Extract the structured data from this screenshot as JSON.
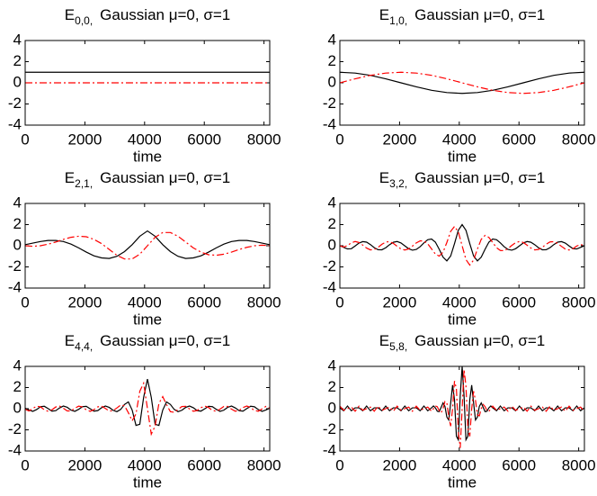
{
  "chart_data": [
    {
      "type": "line",
      "title_symbol": "E",
      "title_subscript": "0,0,",
      "title": "Gaussian μ=0, σ=1",
      "xlabel": "time",
      "xlim": [
        0,
        8192
      ],
      "ylim": [
        -4,
        4
      ],
      "xticks": [
        0,
        2000,
        4000,
        6000,
        8000
      ],
      "yticks": [
        -4,
        -2,
        0,
        2,
        4
      ],
      "x": [
        0,
        8192
      ],
      "series": [
        {
          "color": "#000000",
          "style": "solid",
          "values": [
            1,
            1
          ]
        },
        {
          "color": "#ff0000",
          "style": "dash-dot",
          "values": [
            0,
            0
          ]
        }
      ]
    },
    {
      "type": "line",
      "title_symbol": "E",
      "title_subscript": "1,0,",
      "title": "Gaussian μ=0, σ=1",
      "xlabel": "time",
      "xlim": [
        0,
        8192
      ],
      "ylim": [
        -4,
        4
      ],
      "xticks": [
        0,
        2000,
        4000,
        6000,
        8000
      ],
      "yticks": [
        -4,
        -2,
        0,
        2,
        4
      ],
      "x": [
        0,
        512,
        1024,
        1536,
        2048,
        2560,
        3072,
        3584,
        4096,
        4608,
        5120,
        5632,
        6144,
        6656,
        7168,
        7680,
        8192
      ],
      "series": [
        {
          "color": "#000000",
          "style": "solid",
          "values": [
            1,
            0.92,
            0.71,
            0.38,
            0,
            -0.38,
            -0.71,
            -0.92,
            -1,
            -0.92,
            -0.71,
            -0.38,
            0,
            0.38,
            0.71,
            0.92,
            1
          ]
        },
        {
          "color": "#ff0000",
          "style": "dash-dot",
          "values": [
            0,
            0.38,
            0.71,
            0.92,
            1,
            0.92,
            0.71,
            0.38,
            0,
            -0.38,
            -0.71,
            -0.92,
            -1,
            -0.92,
            -0.71,
            -0.38,
            0
          ]
        }
      ]
    },
    {
      "type": "line",
      "title_symbol": "E",
      "title_subscript": "2,1,",
      "title": "Gaussian μ=0, σ=1",
      "xlabel": "time",
      "xlim": [
        0,
        8192
      ],
      "ylim": [
        -4,
        4
      ],
      "xticks": [
        0,
        2000,
        4000,
        6000,
        8000
      ],
      "yticks": [
        -4,
        -2,
        0,
        2,
        4
      ],
      "x": [
        0,
        256,
        512,
        768,
        1024,
        1280,
        1536,
        1792,
        2048,
        2304,
        2560,
        2816,
        3072,
        3328,
        3584,
        3840,
        4096,
        4352,
        4608,
        4864,
        5120,
        5376,
        5632,
        5888,
        6144,
        6400,
        6656,
        6912,
        7168,
        7424,
        7680,
        7936,
        8192
      ],
      "series": [
        {
          "color": "#000000",
          "style": "solid",
          "values": [
            0.1,
            0.25,
            0.4,
            0.5,
            0.5,
            0.4,
            0.15,
            -0.2,
            -0.6,
            -0.95,
            -1.15,
            -1.2,
            -1.0,
            -0.55,
            0.1,
            0.9,
            1.4,
            0.9,
            0.1,
            -0.55,
            -1.0,
            -1.2,
            -1.15,
            -0.95,
            -0.6,
            -0.2,
            0.15,
            0.4,
            0.5,
            0.5,
            0.4,
            0.25,
            0.1
          ]
        },
        {
          "color": "#ff0000",
          "style": "dash-dot",
          "values": [
            0,
            -0.05,
            0,
            0.15,
            0.35,
            0.6,
            0.8,
            0.9,
            0.85,
            0.6,
            0.2,
            -0.35,
            -0.9,
            -1.25,
            -1.25,
            -0.8,
            0,
            0.8,
            1.25,
            1.25,
            0.9,
            0.35,
            -0.2,
            -0.6,
            -0.85,
            -0.9,
            -0.8,
            -0.6,
            -0.35,
            -0.15,
            0,
            0.05,
            0
          ]
        }
      ]
    },
    {
      "type": "line",
      "title_symbol": "E",
      "title_subscript": "3,2,",
      "title": "Gaussian μ=0, σ=1",
      "xlabel": "time",
      "xlim": [
        0,
        8192
      ],
      "ylim": [
        -4,
        4
      ],
      "xticks": [
        0,
        2000,
        4000,
        6000,
        8000
      ],
      "yticks": [
        -4,
        -2,
        0,
        2,
        4
      ],
      "x": [
        0,
        128,
        256,
        384,
        512,
        640,
        768,
        896,
        1024,
        1152,
        1280,
        1408,
        1536,
        1664,
        1792,
        1920,
        2048,
        2176,
        2304,
        2432,
        2560,
        2688,
        2816,
        2944,
        3072,
        3200,
        3328,
        3456,
        3584,
        3712,
        3840,
        3968,
        4096,
        4224,
        4352,
        4480,
        4608,
        4736,
        4864,
        4992,
        5120,
        5248,
        5376,
        5504,
        5632,
        5760,
        5888,
        6016,
        6144,
        6272,
        6400,
        6528,
        6656,
        6784,
        6912,
        7040,
        7168,
        7296,
        7424,
        7552,
        7680,
        7808,
        7936,
        8064,
        8192
      ],
      "series": [
        {
          "color": "#000000",
          "style": "solid",
          "values": [
            0,
            -0.15,
            -0.3,
            -0.28,
            -0.02,
            0.25,
            0.39,
            0.34,
            0.11,
            -0.18,
            -0.37,
            -0.38,
            -0.19,
            0.1,
            0.33,
            0.4,
            0.26,
            -0.01,
            -0.28,
            -0.42,
            -0.35,
            -0.09,
            0.27,
            0.57,
            0.64,
            0.34,
            -0.33,
            -1.08,
            -1.43,
            -0.97,
            0.2,
            1.46,
            2.0,
            1.46,
            0.2,
            -0.97,
            -1.43,
            -1.08,
            -0.33,
            0.34,
            0.64,
            0.57,
            0.27,
            -0.09,
            -0.35,
            -0.42,
            -0.28,
            -0.01,
            0.26,
            0.4,
            0.33,
            0.1,
            -0.19,
            -0.38,
            -0.37,
            -0.18,
            0.11,
            0.34,
            0.39,
            0.25,
            -0.02,
            -0.28,
            -0.3,
            -0.15,
            0
          ]
        },
        {
          "color": "#ff0000",
          "style": "dash-dot",
          "values": [
            0,
            -0.12,
            0.02,
            0.28,
            0.4,
            0.31,
            0.06,
            -0.22,
            -0.39,
            -0.36,
            -0.15,
            0.14,
            0.35,
            0.39,
            0.22,
            -0.05,
            -0.31,
            -0.4,
            -0.3,
            -0.03,
            0.27,
            0.46,
            0.45,
            0.18,
            -0.3,
            -0.79,
            -0.98,
            -0.61,
            0.31,
            1.36,
            1.83,
            1.31,
            0,
            -1.31,
            -1.83,
            -1.36,
            -0.31,
            0.61,
            0.98,
            0.79,
            0.3,
            -0.18,
            -0.45,
            -0.46,
            -0.27,
            0.03,
            0.3,
            0.4,
            0.31,
            0.05,
            -0.22,
            -0.39,
            -0.35,
            -0.14,
            0.15,
            0.36,
            0.39,
            0.22,
            -0.06,
            -0.31,
            -0.4,
            -0.28,
            -0.02,
            0.12,
            0
          ]
        }
      ]
    },
    {
      "type": "line",
      "title_symbol": "E",
      "title_subscript": "4,4,",
      "title": "Gaussian μ=0, σ=1",
      "xlabel": "time",
      "xlim": [
        0,
        8192
      ],
      "ylim": [
        -4,
        4
      ],
      "xticks": [
        0,
        2000,
        4000,
        6000,
        8000
      ],
      "yticks": [
        -4,
        -2,
        0,
        2,
        4
      ],
      "x": [
        0,
        128,
        256,
        384,
        512,
        640,
        768,
        896,
        1024,
        1152,
        1280,
        1408,
        1536,
        1664,
        1792,
        1920,
        2048,
        2176,
        2304,
        2432,
        2560,
        2688,
        2816,
        2944,
        3072,
        3200,
        3328,
        3456,
        3584,
        3712,
        3840,
        3968,
        4096,
        4224,
        4352,
        4480,
        4608,
        4736,
        4864,
        4992,
        5120,
        5248,
        5376,
        5504,
        5632,
        5760,
        5888,
        6016,
        6144,
        6272,
        6400,
        6528,
        6656,
        6784,
        6912,
        7040,
        7168,
        7296,
        7424,
        7552,
        7680,
        7808,
        7936,
        8064,
        8192
      ],
      "series": [
        {
          "color": "#000000",
          "style": "solid",
          "values": [
            0.05,
            -0.12,
            -0.25,
            -0.08,
            0.18,
            0.23,
            0.01,
            -0.23,
            -0.19,
            0.07,
            0.25,
            0.13,
            -0.14,
            -0.25,
            -0.06,
            0.19,
            0.22,
            -0.01,
            -0.23,
            -0.18,
            0.09,
            0.25,
            0.12,
            -0.15,
            -0.28,
            -0.07,
            0.4,
            0.64,
            -0.13,
            -1.58,
            -1.47,
            1.07,
            2.8,
            1.07,
            -1.47,
            -1.58,
            -0.13,
            0.64,
            0.4,
            -0.07,
            -0.28,
            -0.15,
            0.12,
            0.25,
            0.09,
            -0.18,
            -0.23,
            -0.01,
            0.22,
            0.19,
            -0.06,
            -0.25,
            -0.14,
            0.13,
            0.25,
            0.07,
            -0.19,
            -0.23,
            0.01,
            0.23,
            0.18,
            -0.08,
            -0.25,
            -0.12,
            0.05
          ]
        },
        {
          "color": "#ff0000",
          "style": "dash-dot",
          "values": [
            -0.05,
            -0.22,
            0.02,
            0.24,
            0.17,
            -0.1,
            -0.25,
            -0.11,
            0.16,
            0.24,
            0.04,
            -0.21,
            -0.21,
            0.04,
            0.24,
            0.16,
            -0.11,
            -0.25,
            -0.09,
            0.17,
            0.24,
            0.02,
            -0.22,
            -0.2,
            0.07,
            0.34,
            0.28,
            -0.38,
            -1.14,
            -0.5,
            1.65,
            2.41,
            0,
            -2.41,
            -1.65,
            0.5,
            1.14,
            0.38,
            -0.28,
            -0.34,
            -0.07,
            0.2,
            0.22,
            -0.02,
            -0.24,
            -0.17,
            0.09,
            0.25,
            0.11,
            -0.16,
            -0.24,
            -0.04,
            0.21,
            0.21,
            -0.04,
            -0.24,
            -0.16,
            0.11,
            0.25,
            0.1,
            -0.17,
            -0.24,
            -0.02,
            0.22,
            0.05
          ]
        }
      ]
    },
    {
      "type": "line",
      "title_symbol": "E",
      "title_subscript": "5,8,",
      "title": "Gaussian μ=0, σ=1",
      "xlabel": "time",
      "xlim": [
        0,
        8192
      ],
      "ylim": [
        -4,
        4
      ],
      "xticks": [
        0,
        2000,
        4000,
        6000,
        8000
      ],
      "yticks": [
        -4,
        -2,
        0,
        2,
        4
      ],
      "x": [
        0,
        128,
        256,
        384,
        512,
        640,
        768,
        896,
        1024,
        1152,
        1280,
        1408,
        1536,
        1664,
        1792,
        1920,
        2048,
        2176,
        2304,
        2432,
        2560,
        2688,
        2816,
        2944,
        3072,
        3136,
        3200,
        3264,
        3328,
        3392,
        3456,
        3520,
        3584,
        3648,
        3712,
        3776,
        3840,
        3904,
        3968,
        4032,
        4096,
        4160,
        4224,
        4288,
        4352,
        4416,
        4480,
        4544,
        4608,
        4672,
        4736,
        4800,
        4864,
        4928,
        4992,
        5056,
        5120,
        5248,
        5376,
        5504,
        5632,
        5760,
        5888,
        6016,
        6144,
        6272,
        6400,
        6528,
        6656,
        6784,
        6912,
        7040,
        7168,
        7296,
        7424,
        7552,
        7680,
        7808,
        7936,
        8064,
        8192
      ],
      "series": [
        {
          "color": "#000000",
          "style": "solid",
          "values": [
            0.08,
            -0.2,
            0.25,
            -0.2,
            0.08,
            0.08,
            -0.2,
            0.25,
            -0.2,
            0.08,
            0.08,
            -0.2,
            0.25,
            -0.2,
            0.08,
            0.08,
            -0.2,
            0.25,
            -0.2,
            0.08,
            0.08,
            -0.2,
            0.25,
            -0.2,
            0.08,
            0.26,
            0.08,
            -0.24,
            -0.28,
            0.13,
            0.54,
            0.22,
            -0.79,
            -1.07,
            0.54,
            2.23,
            0.85,
            -2.61,
            -2.94,
            1.21,
            4.0,
            1.21,
            -2.94,
            -2.61,
            0.85,
            2.23,
            0.54,
            -1.07,
            -0.79,
            0.22,
            0.54,
            0.13,
            -0.28,
            -0.24,
            0.08,
            0.26,
            0.08,
            -0.2,
            0.25,
            -0.2,
            0.08,
            0.08,
            -0.2,
            0.25,
            -0.2,
            0.08,
            0.08,
            -0.2,
            0.25,
            -0.2,
            0.08,
            0.08,
            -0.2,
            0.25,
            -0.2,
            0.08,
            0.08,
            -0.2,
            0.25,
            -0.2,
            0.08
          ]
        },
        {
          "color": "#ff0000",
          "style": "dash-dot",
          "values": [
            0.24,
            -0.15,
            0,
            0.15,
            -0.24,
            0.24,
            -0.15,
            0,
            0.15,
            -0.24,
            0.24,
            -0.15,
            0,
            0.15,
            -0.24,
            0.24,
            -0.15,
            0,
            0.15,
            -0.24,
            0.24,
            -0.15,
            0,
            0.15,
            -0.24,
            0,
            0.26,
            0.18,
            -0.2,
            -0.4,
            0,
            0.68,
            0.58,
            -0.78,
            -1.65,
            0,
            2.61,
            1.9,
            -2.14,
            -3.71,
            0,
            3.71,
            2.14,
            -1.9,
            -2.61,
            0,
            1.65,
            0.78,
            -0.58,
            -0.68,
            0,
            0.4,
            0.2,
            -0.18,
            -0.26,
            0,
            0.24,
            -0.15,
            0,
            0.15,
            -0.24,
            0.24,
            -0.15,
            0,
            0.15,
            -0.24,
            0.24,
            -0.15,
            0,
            0.15,
            -0.24,
            0.24,
            -0.15,
            0,
            0.15,
            -0.24,
            0.24,
            -0.15,
            0,
            0.15,
            -0.24
          ]
        }
      ]
    }
  ]
}
